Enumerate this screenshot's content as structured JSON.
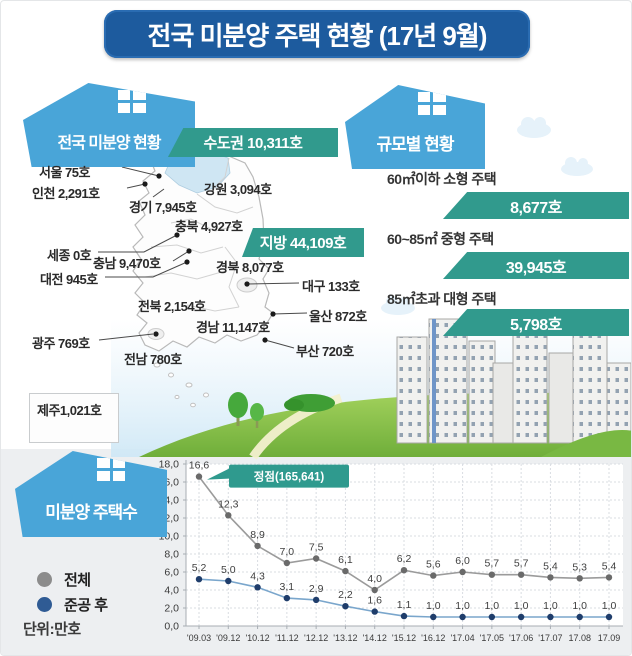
{
  "title": "전국 미분양 주택 현황 (17년 9월)",
  "colors": {
    "title_bg": "#1d5b9e",
    "house_blue": "#49a5d8",
    "banner_teal": "#319a8d"
  },
  "map": {
    "header": "전국 미분양 현황",
    "capital_banner": "수도권 10,311호",
    "regional_banner": "지방 44,109호",
    "regions": [
      {
        "label": "서울 75호"
      },
      {
        "label": "인천 2,291호"
      },
      {
        "label": "경기 7,945호"
      },
      {
        "label": "강원 3,094호"
      },
      {
        "label": "충북 4,927호"
      },
      {
        "label": "세종 0호"
      },
      {
        "label": "충남 9,470호"
      },
      {
        "label": "대전 945호"
      },
      {
        "label": "경북 8,077호"
      },
      {
        "label": "대구 133호"
      },
      {
        "label": "전북 2,154호"
      },
      {
        "label": "울산 872호"
      },
      {
        "label": "광주 769호"
      },
      {
        "label": "경남 11,147호"
      },
      {
        "label": "부산 720호"
      },
      {
        "label": "전남 780호"
      }
    ],
    "jeju_label": "제주1,021호"
  },
  "size_panel": {
    "header": "규모별 현황",
    "items": [
      {
        "label": "60㎡이하 소형 주택",
        "value": "8,677호"
      },
      {
        "label": "60~85㎡ 중형 주택",
        "value": "39,945호"
      },
      {
        "label": "85㎡초과 대형 주택",
        "value": "5,798호"
      }
    ]
  },
  "chart_section": {
    "header": "미분양 주택수",
    "legend": [
      {
        "label": "전체",
        "color": "#8c8c8c"
      },
      {
        "label": "준공 후",
        "color": "#2f5b94"
      }
    ],
    "unit": "단위:만호"
  },
  "chart_data": {
    "type": "line",
    "categories": [
      "'09.03",
      "'09.12",
      "'10.12",
      "'11.12",
      "'12.12",
      "'13.12",
      "'14.12",
      "'15.12",
      "'16.12",
      "'17.04",
      "'17.05",
      "'17.06",
      "'17.07",
      "17.08",
      "17.09"
    ],
    "series": [
      {
        "name": "전체",
        "line_color": "#9b9b9b",
        "dot_color": "#6a6a6a",
        "values": [
          16.6,
          12.3,
          8.9,
          7.0,
          7.5,
          6.1,
          4.0,
          6.2,
          5.6,
          6.0,
          5.7,
          5.7,
          5.4,
          5.3,
          5.4
        ],
        "labels": [
          "16,6",
          "12,3",
          "8,9",
          "7,0",
          "7,5",
          "6,1",
          "4,0",
          "6,2",
          "5,6",
          "6,0",
          "5,7",
          "5,7",
          "5,4",
          "5,3",
          "5,4"
        ]
      },
      {
        "name": "준공 후",
        "line_color": "#7aa6cc",
        "dot_color": "#1f3d6b",
        "values": [
          5.2,
          5.0,
          4.3,
          3.1,
          2.9,
          2.2,
          1.6,
          1.1,
          1.0,
          1.0,
          1.0,
          1.0,
          1.0,
          1.0,
          1.0
        ],
        "labels": [
          "5,2",
          "5,0",
          "4,3",
          "3,1",
          "2,9",
          "2,2",
          "1,6",
          "1,1",
          "1,0",
          "1,0",
          "1,0",
          "1,0",
          "1,0",
          "1,0",
          "1,0"
        ]
      }
    ],
    "ylim": [
      0,
      18
    ],
    "ytick_step": 2,
    "ytick_labels": [
      "0,0",
      "2,0",
      "4,0",
      "6,0",
      "8,0",
      "10,0",
      "12,0",
      "14,0",
      "16,0",
      "18,0"
    ],
    "annotation": {
      "text": "정점(165,641)",
      "color": "#2f9a8e"
    },
    "grid": true,
    "legend_position": "left",
    "title": "미분양 주택수",
    "xlabel": "",
    "ylabel": "단위:만호"
  }
}
